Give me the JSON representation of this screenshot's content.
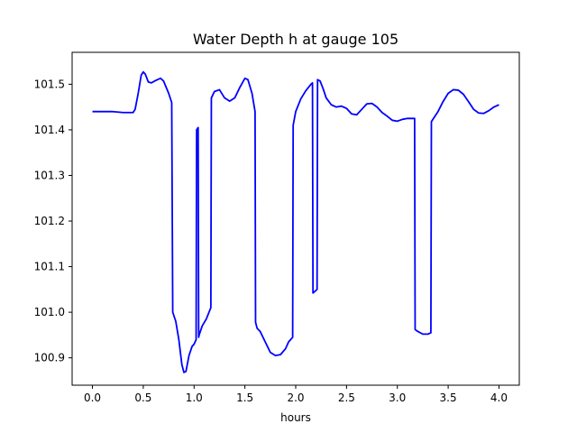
{
  "chart_data": {
    "type": "line",
    "title": "Water Depth h at gauge 105",
    "xlabel": "hours",
    "ylabel": "",
    "xlim": [
      -0.2,
      4.2
    ],
    "ylim": [
      100.84,
      101.57
    ],
    "xticks": [
      0.0,
      0.5,
      1.0,
      1.5,
      2.0,
      2.5,
      3.0,
      3.5,
      4.0
    ],
    "xtick_labels": [
      "0.0",
      "0.5",
      "1.0",
      "1.5",
      "2.0",
      "2.5",
      "3.0",
      "3.5",
      "4.0"
    ],
    "yticks": [
      100.9,
      101.0,
      101.1,
      101.2,
      101.3,
      101.4,
      101.5
    ],
    "ytick_labels": [
      "100.9",
      "101.0",
      "101.1",
      "101.2",
      "101.3",
      "101.4",
      "101.5"
    ],
    "grid": false,
    "legend": "none",
    "series": [
      {
        "color": "#0000ff",
        "x": [
          0.0,
          0.1,
          0.2,
          0.3,
          0.4,
          0.42,
          0.45,
          0.48,
          0.5,
          0.52,
          0.55,
          0.58,
          0.62,
          0.67,
          0.7,
          0.75,
          0.78,
          0.79,
          0.82,
          0.85,
          0.88,
          0.9,
          0.92,
          0.95,
          0.98,
          1.0,
          1.02,
          1.025,
          1.04,
          1.045,
          1.05,
          1.08,
          1.12,
          1.165,
          1.17,
          1.2,
          1.25,
          1.3,
          1.35,
          1.4,
          1.45,
          1.5,
          1.53,
          1.57,
          1.6,
          1.605,
          1.62,
          1.65,
          1.7,
          1.75,
          1.8,
          1.85,
          1.9,
          1.93,
          1.97,
          1.975,
          2.0,
          2.05,
          2.1,
          2.15,
          2.165,
          2.17,
          2.2,
          2.21,
          2.215,
          2.24,
          2.27,
          2.3,
          2.35,
          2.4,
          2.45,
          2.5,
          2.55,
          2.6,
          2.65,
          2.7,
          2.75,
          2.8,
          2.85,
          2.9,
          2.95,
          3.0,
          3.05,
          3.1,
          3.15,
          3.17,
          3.175,
          3.2,
          3.25,
          3.3,
          3.33,
          3.335,
          3.4,
          3.45,
          3.5,
          3.55,
          3.6,
          3.65,
          3.7,
          3.75,
          3.8,
          3.85,
          3.9,
          3.95,
          4.0
        ],
        "y": [
          101.44,
          101.44,
          101.44,
          101.438,
          101.438,
          101.445,
          101.48,
          101.52,
          101.527,
          101.522,
          101.505,
          101.503,
          101.508,
          101.513,
          101.507,
          101.48,
          101.46,
          101.0,
          100.98,
          100.94,
          100.885,
          100.868,
          100.87,
          100.905,
          100.925,
          100.93,
          100.94,
          101.4,
          101.405,
          100.945,
          100.95,
          100.97,
          100.985,
          101.01,
          101.47,
          101.484,
          101.488,
          101.47,
          101.463,
          101.47,
          101.493,
          101.513,
          101.51,
          101.48,
          101.44,
          100.978,
          100.965,
          100.958,
          100.935,
          100.912,
          100.905,
          100.907,
          100.92,
          100.935,
          100.945,
          101.41,
          101.44,
          101.468,
          101.486,
          101.5,
          101.503,
          101.042,
          101.048,
          101.05,
          101.51,
          101.507,
          101.49,
          101.47,
          101.455,
          101.45,
          101.452,
          101.447,
          101.435,
          101.433,
          101.445,
          101.457,
          101.458,
          101.45,
          101.438,
          101.43,
          101.421,
          101.419,
          101.423,
          101.425,
          101.425,
          101.425,
          100.962,
          100.958,
          100.952,
          100.952,
          100.955,
          101.418,
          101.44,
          101.462,
          101.48,
          101.488,
          101.487,
          101.478,
          101.462,
          101.445,
          101.437,
          101.436,
          101.442,
          101.45,
          101.455
        ]
      }
    ]
  }
}
